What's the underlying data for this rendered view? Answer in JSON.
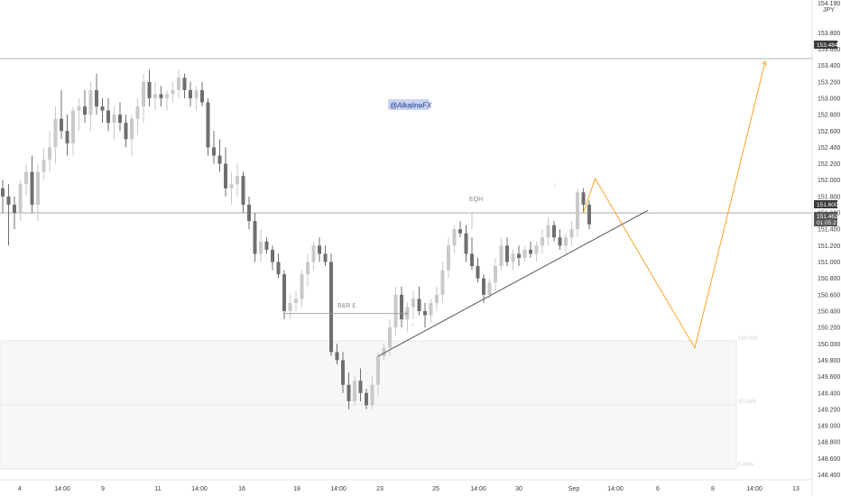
{
  "chart_data": {
    "type": "candlestick",
    "currency_label": {
      "line1": "154.190",
      "line2": "JPY"
    },
    "y_ticks": [
      "148.400",
      "148.600",
      "148.800",
      "149.000",
      "149.200",
      "149.400",
      "149.600",
      "149.800",
      "150.000",
      "150.200",
      "150.400",
      "150.600",
      "150.800",
      "151.000",
      "151.200",
      "151.400",
      "151.600",
      "151.800",
      "152.000",
      "152.200",
      "152.400",
      "152.600",
      "152.800",
      "153.000",
      "153.200",
      "153.400",
      "153.600",
      "153.800"
    ],
    "ylim": [
      148.34,
      154.2
    ],
    "x_ticks": [
      "4",
      "14:00",
      "9",
      "11",
      "14:00",
      "16",
      "18",
      "14:00",
      "23",
      "25",
      "14:00",
      "30",
      "Sep",
      "14:00",
      "6",
      "8",
      "14:00",
      "13"
    ],
    "bars": [
      {
        "o": 151.9,
        "h": 152.0,
        "l": 151.6,
        "c": 151.8
      },
      {
        "o": 151.8,
        "h": 151.95,
        "l": 151.2,
        "c": 151.7
      },
      {
        "o": 151.7,
        "h": 151.8,
        "l": 151.4,
        "c": 151.6
      },
      {
        "o": 151.6,
        "h": 152.0,
        "l": 151.5,
        "c": 151.95
      },
      {
        "o": 151.95,
        "h": 152.2,
        "l": 151.8,
        "c": 152.1
      },
      {
        "o": 152.1,
        "h": 152.3,
        "l": 151.6,
        "c": 151.7
      },
      {
        "o": 151.7,
        "h": 152.2,
        "l": 151.5,
        "c": 152.1
      },
      {
        "o": 152.1,
        "h": 152.4,
        "l": 152.0,
        "c": 152.25
      },
      {
        "o": 152.25,
        "h": 152.6,
        "l": 152.1,
        "c": 152.4
      },
      {
        "o": 152.4,
        "h": 152.9,
        "l": 152.2,
        "c": 152.75
      },
      {
        "o": 152.75,
        "h": 153.1,
        "l": 152.5,
        "c": 152.6
      },
      {
        "o": 152.6,
        "h": 152.8,
        "l": 152.3,
        "c": 152.45
      },
      {
        "o": 152.45,
        "h": 152.9,
        "l": 152.3,
        "c": 152.85
      },
      {
        "o": 152.85,
        "h": 153.0,
        "l": 152.6,
        "c": 152.9
      },
      {
        "o": 152.9,
        "h": 153.1,
        "l": 152.7,
        "c": 152.8
      },
      {
        "o": 152.8,
        "h": 153.2,
        "l": 152.6,
        "c": 153.1
      },
      {
        "o": 153.1,
        "h": 153.3,
        "l": 152.8,
        "c": 152.9
      },
      {
        "o": 152.9,
        "h": 153.0,
        "l": 152.7,
        "c": 152.85
      },
      {
        "o": 152.85,
        "h": 153.0,
        "l": 152.6,
        "c": 152.7
      },
      {
        "o": 152.7,
        "h": 152.9,
        "l": 152.5,
        "c": 152.8
      },
      {
        "o": 152.8,
        "h": 152.95,
        "l": 152.6,
        "c": 152.7
      },
      {
        "o": 152.7,
        "h": 152.8,
        "l": 152.4,
        "c": 152.5
      },
      {
        "o": 152.5,
        "h": 152.8,
        "l": 152.3,
        "c": 152.75
      },
      {
        "o": 152.75,
        "h": 153.0,
        "l": 152.55,
        "c": 152.9
      },
      {
        "o": 152.9,
        "h": 153.3,
        "l": 152.7,
        "c": 153.2
      },
      {
        "o": 153.2,
        "h": 153.35,
        "l": 152.9,
        "c": 153.0
      },
      {
        "o": 153.0,
        "h": 153.2,
        "l": 152.85,
        "c": 153.05
      },
      {
        "o": 153.05,
        "h": 153.15,
        "l": 152.9,
        "c": 153.0
      },
      {
        "o": 153.0,
        "h": 153.1,
        "l": 152.85,
        "c": 153.05
      },
      {
        "o": 153.05,
        "h": 153.2,
        "l": 152.95,
        "c": 153.1
      },
      {
        "o": 153.1,
        "h": 153.35,
        "l": 153.0,
        "c": 153.25
      },
      {
        "o": 153.25,
        "h": 153.3,
        "l": 153.0,
        "c": 153.1
      },
      {
        "o": 153.1,
        "h": 153.2,
        "l": 152.9,
        "c": 153.0
      },
      {
        "o": 153.0,
        "h": 153.15,
        "l": 152.85,
        "c": 153.1
      },
      {
        "o": 153.1,
        "h": 153.2,
        "l": 152.9,
        "c": 152.95
      },
      {
        "o": 152.95,
        "h": 153.0,
        "l": 152.3,
        "c": 152.4
      },
      {
        "o": 152.4,
        "h": 152.6,
        "l": 152.2,
        "c": 152.3
      },
      {
        "o": 152.3,
        "h": 152.5,
        "l": 152.1,
        "c": 152.2
      },
      {
        "o": 152.2,
        "h": 152.4,
        "l": 151.8,
        "c": 151.9
      },
      {
        "o": 151.9,
        "h": 152.1,
        "l": 151.7,
        "c": 151.95
      },
      {
        "o": 151.95,
        "h": 152.2,
        "l": 151.8,
        "c": 152.05
      },
      {
        "o": 152.05,
        "h": 152.1,
        "l": 151.6,
        "c": 151.7
      },
      {
        "o": 151.7,
        "h": 151.8,
        "l": 151.4,
        "c": 151.5
      },
      {
        "o": 151.5,
        "h": 151.6,
        "l": 151.0,
        "c": 151.1
      },
      {
        "o": 151.1,
        "h": 151.4,
        "l": 151.0,
        "c": 151.25
      },
      {
        "o": 151.25,
        "h": 151.3,
        "l": 151.1,
        "c": 151.15
      },
      {
        "o": 151.15,
        "h": 151.2,
        "l": 150.9,
        "c": 151.0
      },
      {
        "o": 151.0,
        "h": 151.1,
        "l": 150.8,
        "c": 150.85
      },
      {
        "o": 150.85,
        "h": 150.9,
        "l": 150.3,
        "c": 150.4
      },
      {
        "o": 150.4,
        "h": 150.6,
        "l": 150.3,
        "c": 150.5
      },
      {
        "o": 150.5,
        "h": 150.65,
        "l": 150.4,
        "c": 150.55
      },
      {
        "o": 150.55,
        "h": 150.9,
        "l": 150.45,
        "c": 150.85
      },
      {
        "o": 150.85,
        "h": 151.1,
        "l": 150.7,
        "c": 151.0
      },
      {
        "o": 151.0,
        "h": 151.25,
        "l": 150.9,
        "c": 151.2
      },
      {
        "o": 151.2,
        "h": 151.3,
        "l": 151.0,
        "c": 151.1
      },
      {
        "o": 151.1,
        "h": 151.2,
        "l": 150.95,
        "c": 151.0
      },
      {
        "o": 151.0,
        "h": 151.1,
        "l": 149.85,
        "c": 149.9
      },
      {
        "o": 149.9,
        "h": 150.0,
        "l": 149.75,
        "c": 149.8
      },
      {
        "o": 149.8,
        "h": 149.9,
        "l": 149.4,
        "c": 149.5
      },
      {
        "o": 149.5,
        "h": 149.65,
        "l": 149.2,
        "c": 149.3
      },
      {
        "o": 149.3,
        "h": 149.6,
        "l": 149.25,
        "c": 149.55
      },
      {
        "o": 149.55,
        "h": 149.7,
        "l": 149.3,
        "c": 149.4
      },
      {
        "o": 149.4,
        "h": 149.45,
        "l": 149.2,
        "c": 149.25
      },
      {
        "o": 149.25,
        "h": 149.6,
        "l": 149.2,
        "c": 149.5
      },
      {
        "o": 149.5,
        "h": 149.9,
        "l": 149.35,
        "c": 149.85
      },
      {
        "o": 149.85,
        "h": 150.0,
        "l": 149.8,
        "c": 149.95
      },
      {
        "o": 149.95,
        "h": 150.3,
        "l": 149.85,
        "c": 150.2
      },
      {
        "o": 150.2,
        "h": 150.7,
        "l": 150.1,
        "c": 150.6
      },
      {
        "o": 150.6,
        "h": 150.7,
        "l": 150.2,
        "c": 150.3
      },
      {
        "o": 150.3,
        "h": 150.5,
        "l": 150.15,
        "c": 150.45
      },
      {
        "o": 150.45,
        "h": 150.65,
        "l": 150.3,
        "c": 150.55
      },
      {
        "o": 150.55,
        "h": 150.7,
        "l": 150.35,
        "c": 150.4
      },
      {
        "o": 150.4,
        "h": 150.5,
        "l": 150.2,
        "c": 150.35
      },
      {
        "o": 150.35,
        "h": 150.55,
        "l": 150.25,
        "c": 150.5
      },
      {
        "o": 150.5,
        "h": 150.7,
        "l": 150.4,
        "c": 150.6
      },
      {
        "o": 150.6,
        "h": 151.0,
        "l": 150.5,
        "c": 150.9
      },
      {
        "o": 150.9,
        "h": 151.3,
        "l": 150.8,
        "c": 151.2
      },
      {
        "o": 151.2,
        "h": 151.45,
        "l": 151.1,
        "c": 151.4
      },
      {
        "o": 151.4,
        "h": 151.5,
        "l": 151.3,
        "c": 151.35
      },
      {
        "o": 151.35,
        "h": 151.45,
        "l": 151.0,
        "c": 151.1
      },
      {
        "o": 151.1,
        "h": 151.3,
        "l": 150.9,
        "c": 150.95
      },
      {
        "o": 150.95,
        "h": 151.05,
        "l": 150.75,
        "c": 150.8
      },
      {
        "o": 150.8,
        "h": 150.85,
        "l": 150.5,
        "c": 150.6
      },
      {
        "o": 150.6,
        "h": 150.8,
        "l": 150.55,
        "c": 150.75
      },
      {
        "o": 150.75,
        "h": 151.05,
        "l": 150.65,
        "c": 150.95
      },
      {
        "o": 150.95,
        "h": 151.3,
        "l": 150.9,
        "c": 151.2
      },
      {
        "o": 151.2,
        "h": 151.3,
        "l": 150.95,
        "c": 151.0
      },
      {
        "o": 151.0,
        "h": 151.15,
        "l": 150.9,
        "c": 151.1
      },
      {
        "o": 151.1,
        "h": 151.2,
        "l": 150.95,
        "c": 151.05
      },
      {
        "o": 151.05,
        "h": 151.2,
        "l": 151.0,
        "c": 151.15
      },
      {
        "o": 151.15,
        "h": 151.25,
        "l": 151.05,
        "c": 151.1
      },
      {
        "o": 151.1,
        "h": 151.25,
        "l": 151.0,
        "c": 151.2
      },
      {
        "o": 151.2,
        "h": 151.4,
        "l": 151.1,
        "c": 151.3
      },
      {
        "o": 151.3,
        "h": 151.55,
        "l": 151.2,
        "c": 151.45
      },
      {
        "o": 151.45,
        "h": 151.5,
        "l": 151.25,
        "c": 151.3
      },
      {
        "o": 151.3,
        "h": 151.4,
        "l": 151.15,
        "c": 151.2
      },
      {
        "o": 151.2,
        "h": 151.35,
        "l": 151.1,
        "c": 151.3
      },
      {
        "o": 151.3,
        "h": 151.5,
        "l": 151.2,
        "c": 151.4
      },
      {
        "o": 151.4,
        "h": 151.9,
        "l": 151.3,
        "c": 151.85
      },
      {
        "o": 151.85,
        "h": 151.9,
        "l": 151.6,
        "c": 151.7
      },
      {
        "o": 151.7,
        "h": 151.75,
        "l": 151.4,
        "c": 151.46
      }
    ],
    "horizontal_levels": [
      {
        "price": 153.484,
        "label": "153.484"
      },
      {
        "price": 151.6,
        "label": "151.600"
      }
    ],
    "current_price": {
      "label": "151.462",
      "countdown": "01:05:23"
    },
    "annotations": {
      "watermark": "@AlkalineFX",
      "bnr_label": "B&R £",
      "eqh_label": "EQH",
      "small_mark": "c",
      "zone_top_label": "150.000",
      "zone_mid_label": "50.00%",
      "zone_bottom_label": "0.00%",
      "zone_small_mark": "c"
    },
    "projection_path": [
      {
        "bar": 99,
        "price": 151.6
      },
      {
        "bar": 101,
        "price": 152.02
      },
      {
        "bar": 118,
        "price": 149.95
      },
      {
        "bar": 130,
        "price": 153.45
      }
    ],
    "trendline": {
      "from": {
        "bar": 64,
        "price": 149.85
      },
      "to": {
        "bar": 110,
        "price": 151.63
      }
    },
    "colors": {
      "bull_candle": "#c9c9c9",
      "bear_candle": "#6f6f6f",
      "projection": "#f5a623",
      "trendline": "#555555",
      "level_line": "#9e9e9e",
      "price_tag": "#4a4a4a",
      "watermark_bg": "#c9d4f2",
      "zone_fill": "#f7f7f7"
    }
  }
}
